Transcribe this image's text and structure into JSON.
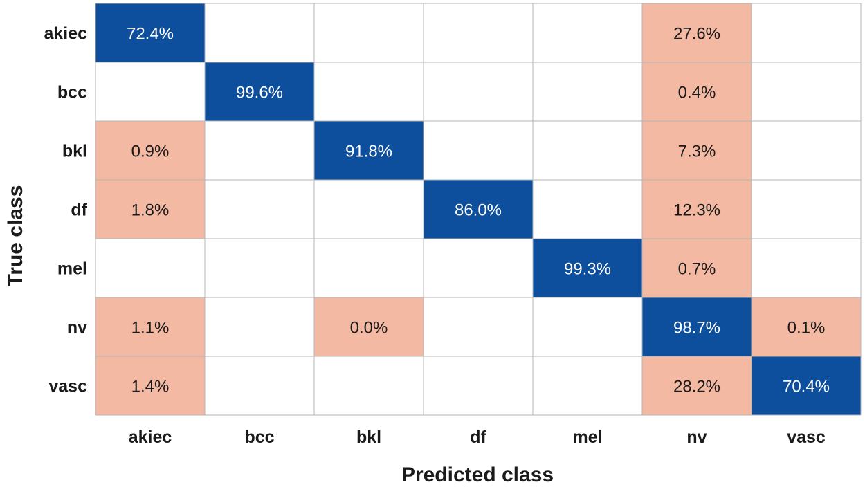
{
  "chart_data": {
    "type": "heatmap",
    "title": "",
    "xlabel": "Predicted class",
    "ylabel": "True class",
    "x_categories": [
      "akiec",
      "bcc",
      "bkl",
      "df",
      "mel",
      "nv",
      "vasc"
    ],
    "y_categories": [
      "akiec",
      "bcc",
      "bkl",
      "df",
      "mel",
      "nv",
      "vasc"
    ],
    "unit": "%",
    "cells": [
      {
        "row": "akiec",
        "col": "akiec",
        "value": "72.4%"
      },
      {
        "row": "akiec",
        "col": "nv",
        "value": "27.6%"
      },
      {
        "row": "bcc",
        "col": "bcc",
        "value": "99.6%"
      },
      {
        "row": "bcc",
        "col": "nv",
        "value": "0.4%"
      },
      {
        "row": "bkl",
        "col": "akiec",
        "value": "0.9%"
      },
      {
        "row": "bkl",
        "col": "bkl",
        "value": "91.8%"
      },
      {
        "row": "bkl",
        "col": "nv",
        "value": "7.3%"
      },
      {
        "row": "df",
        "col": "akiec",
        "value": "1.8%"
      },
      {
        "row": "df",
        "col": "df",
        "value": "86.0%"
      },
      {
        "row": "df",
        "col": "nv",
        "value": "12.3%"
      },
      {
        "row": "mel",
        "col": "mel",
        "value": "99.3%"
      },
      {
        "row": "mel",
        "col": "nv",
        "value": "0.7%"
      },
      {
        "row": "nv",
        "col": "akiec",
        "value": "1.1%"
      },
      {
        "row": "nv",
        "col": "bkl",
        "value": "0.0%"
      },
      {
        "row": "nv",
        "col": "nv",
        "value": "98.7%"
      },
      {
        "row": "nv",
        "col": "vasc",
        "value": "0.1%"
      },
      {
        "row": "vasc",
        "col": "akiec",
        "value": "1.4%"
      },
      {
        "row": "vasc",
        "col": "nv",
        "value": "28.2%"
      },
      {
        "row": "vasc",
        "col": "vasc",
        "value": "70.4%"
      }
    ],
    "colors": {
      "correct": "#0d4f9c",
      "misclassified": "#f4b9a2",
      "empty": "#ffffff",
      "grid": "#b5b5b5",
      "correct_text": "#ffffff",
      "misclassified_text": "#1a1a1a"
    },
    "grid": true,
    "legend": "none"
  }
}
